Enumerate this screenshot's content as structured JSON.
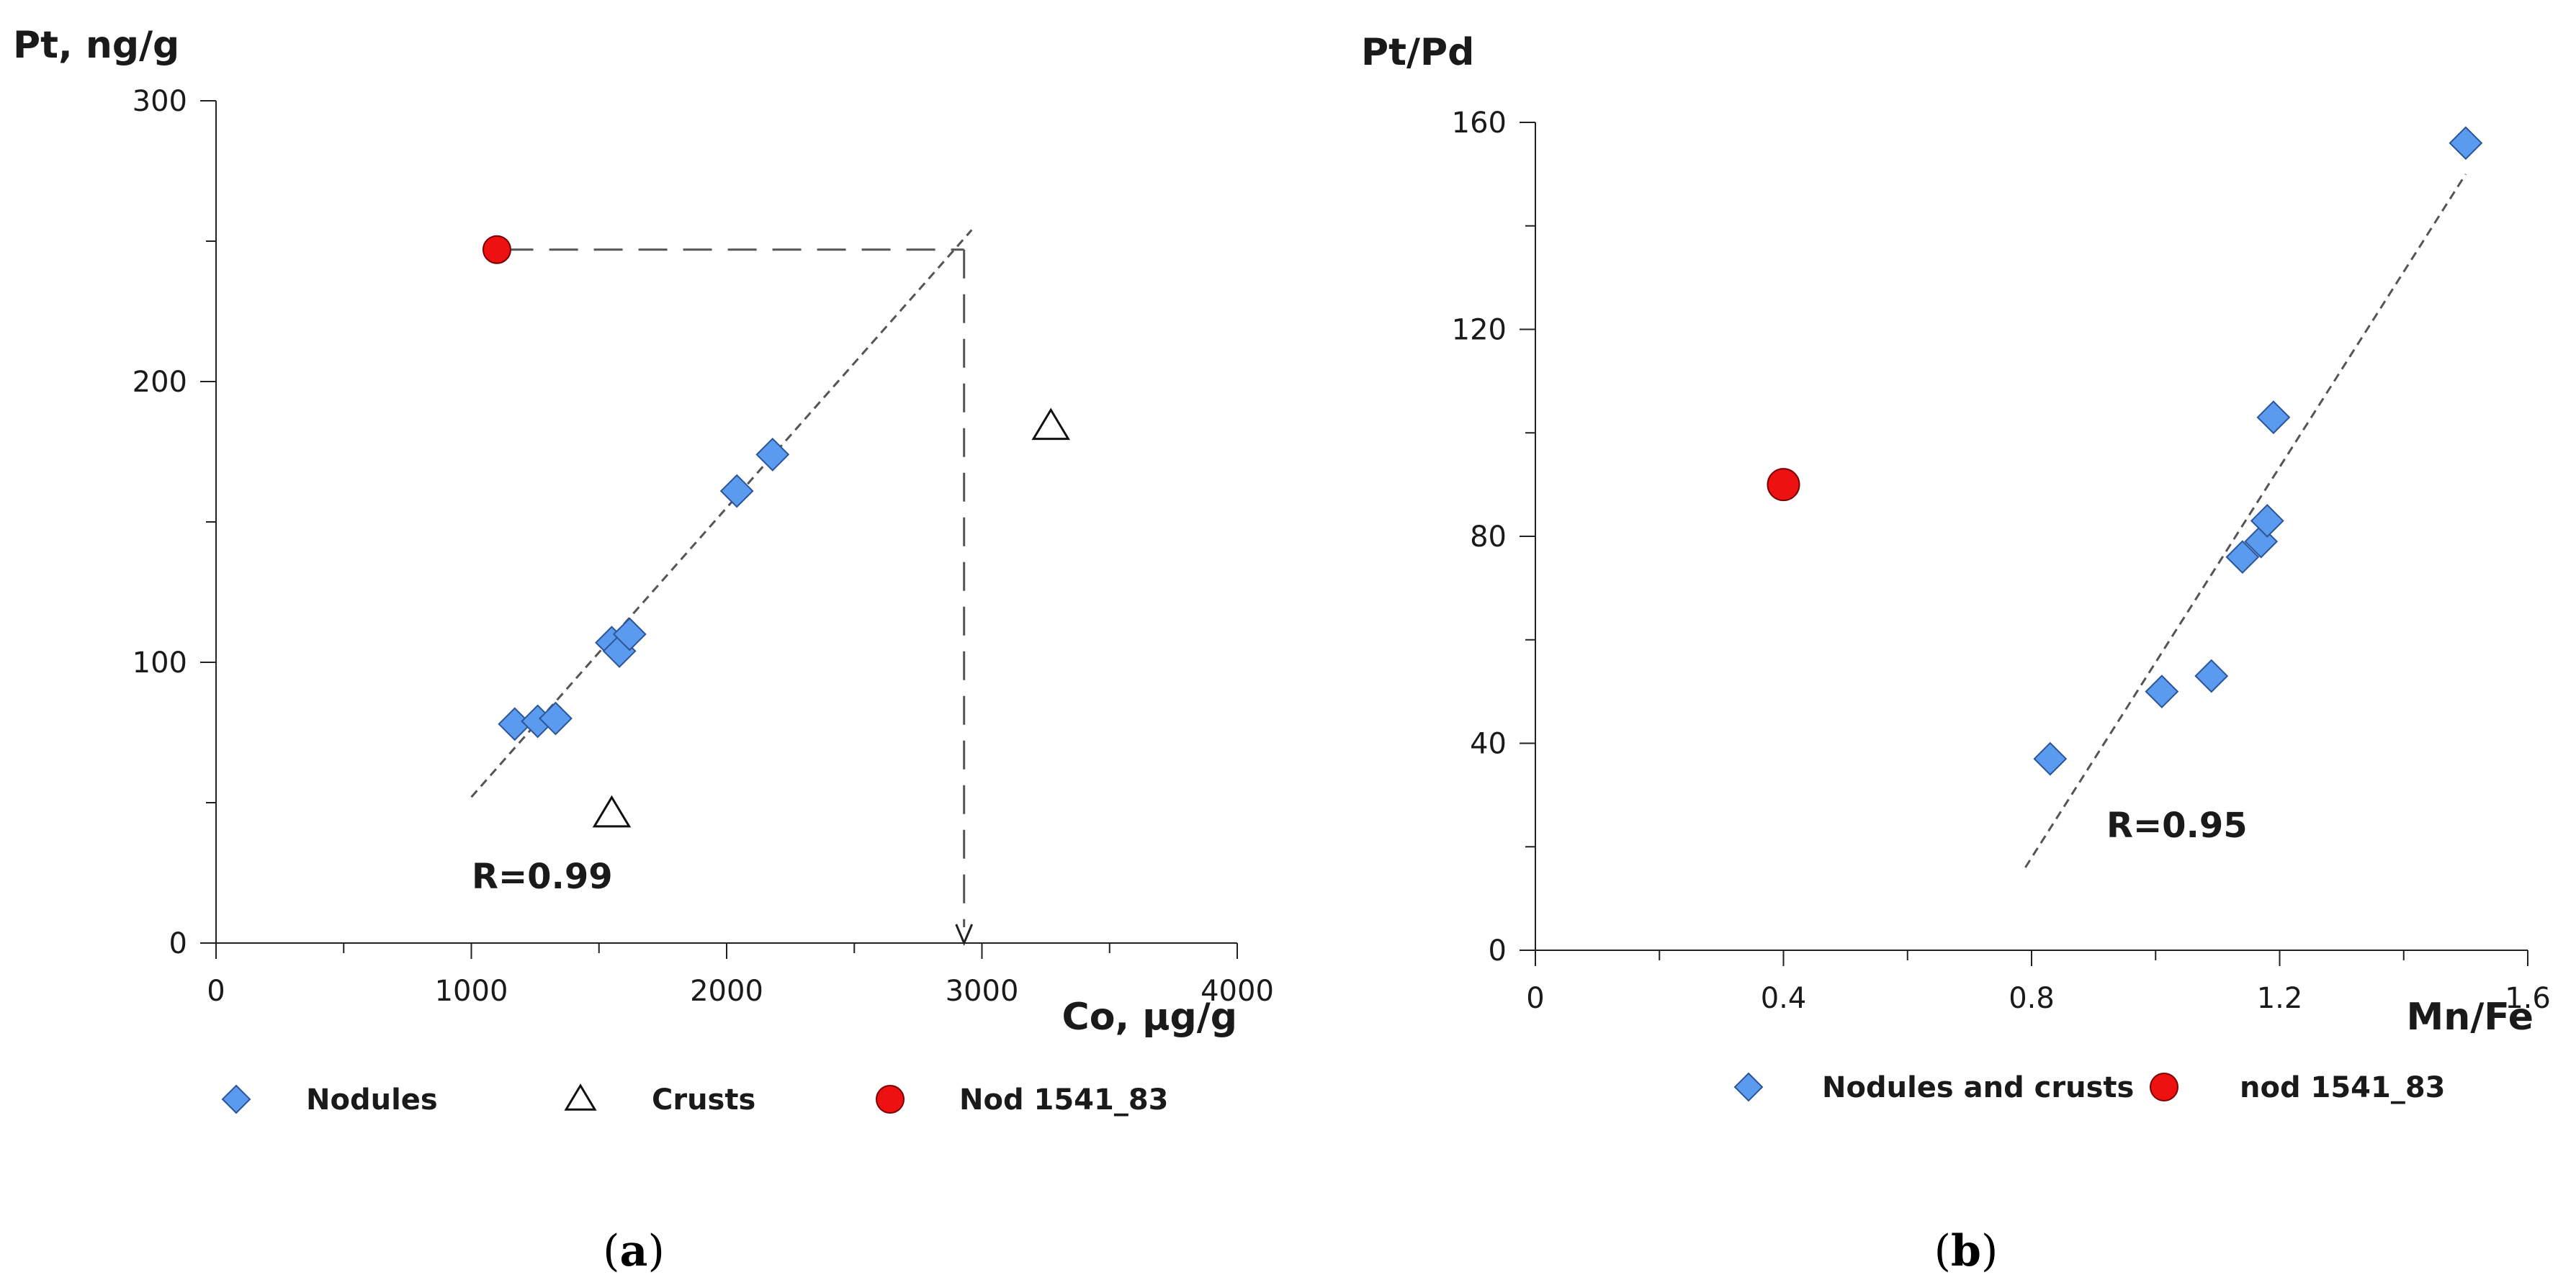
{
  "colors": {
    "nodule_fill": "#5b9bef",
    "nodule_stroke": "#2b5597",
    "red_fill": "#ee1111",
    "red_stroke": "#7a0000",
    "axis": "#222222",
    "guide": "#555555"
  },
  "chart_data": [
    {
      "id": "a",
      "type": "scatter",
      "panel_label": "a",
      "xlabel": "Co, µg/g",
      "ylabel": "Pt, ng/g",
      "xlim": [
        0,
        4000
      ],
      "ylim": [
        0,
        300
      ],
      "x_major_ticks": [
        0,
        1000,
        2000,
        3000,
        4000
      ],
      "x_minor_ticks": [
        500,
        1500,
        2500,
        3500
      ],
      "y_major_ticks": [
        0,
        100,
        200,
        300
      ],
      "y_minor_ticks": [
        50,
        150,
        250
      ],
      "x_tick_labels": [
        "0",
        "1000",
        "2000",
        "3000",
        "4000"
      ],
      "y_tick_labels": [
        "0",
        "100",
        "200",
        "300"
      ],
      "grid": false,
      "annotation": "R=0.99",
      "series": [
        {
          "name": "Nodules",
          "marker": "diamond",
          "points": [
            [
              1170,
              78
            ],
            [
              1260,
              79
            ],
            [
              1330,
              80
            ],
            [
              1550,
              107
            ],
            [
              1580,
              104
            ],
            [
              1620,
              110
            ],
            [
              2040,
              161
            ],
            [
              2180,
              174
            ]
          ]
        },
        {
          "name": "Crusts",
          "marker": "triangle",
          "points": [
            [
              1550,
              46
            ],
            [
              3270,
              184
            ]
          ]
        },
        {
          "name": "Nod 1541_83",
          "marker": "circle",
          "points": [
            [
              1100,
              247
            ]
          ]
        }
      ],
      "trendline": {
        "x": [
          1000,
          2960
        ],
        "y": [
          52,
          254
        ]
      },
      "guide_lines": [
        {
          "kind": "h",
          "from": [
            1130,
            247
          ],
          "to": [
            2930,
            247
          ]
        },
        {
          "kind": "v-arrow",
          "from": [
            2930,
            247
          ],
          "to": [
            2930,
            0
          ]
        }
      ]
    },
    {
      "id": "b",
      "type": "scatter",
      "panel_label": "b",
      "xlabel": "Mn/Fe",
      "ylabel": "Pt/Pd",
      "xlim": [
        0,
        1.6
      ],
      "ylim": [
        0,
        160
      ],
      "x_major_ticks": [
        0,
        0.4,
        0.8,
        1.2,
        1.6
      ],
      "x_minor_ticks": [
        0.2,
        0.6,
        1.0,
        1.4
      ],
      "y_major_ticks": [
        0,
        40,
        80,
        120,
        160
      ],
      "y_minor_ticks": [
        20,
        60,
        100,
        140
      ],
      "x_tick_labels": [
        "0",
        "0.4",
        "0.8",
        "1.2",
        "1.6"
      ],
      "y_tick_labels": [
        "0",
        "40",
        "80",
        "120",
        "160"
      ],
      "grid": false,
      "annotation": "R=0.95",
      "series": [
        {
          "name": "Nodules and crusts",
          "marker": "diamond",
          "points": [
            [
              0.83,
              37
            ],
            [
              1.01,
              50
            ],
            [
              1.09,
              53
            ],
            [
              1.14,
              76
            ],
            [
              1.17,
              79
            ],
            [
              1.18,
              83
            ],
            [
              1.19,
              103
            ],
            [
              1.5,
              156
            ]
          ]
        },
        {
          "name": "nod 1541_83",
          "marker": "circle",
          "points": [
            [
              0.4,
              90
            ]
          ]
        }
      ],
      "trendline": {
        "x": [
          0.79,
          1.5
        ],
        "y": [
          16,
          150
        ]
      },
      "guide_lines": []
    }
  ]
}
